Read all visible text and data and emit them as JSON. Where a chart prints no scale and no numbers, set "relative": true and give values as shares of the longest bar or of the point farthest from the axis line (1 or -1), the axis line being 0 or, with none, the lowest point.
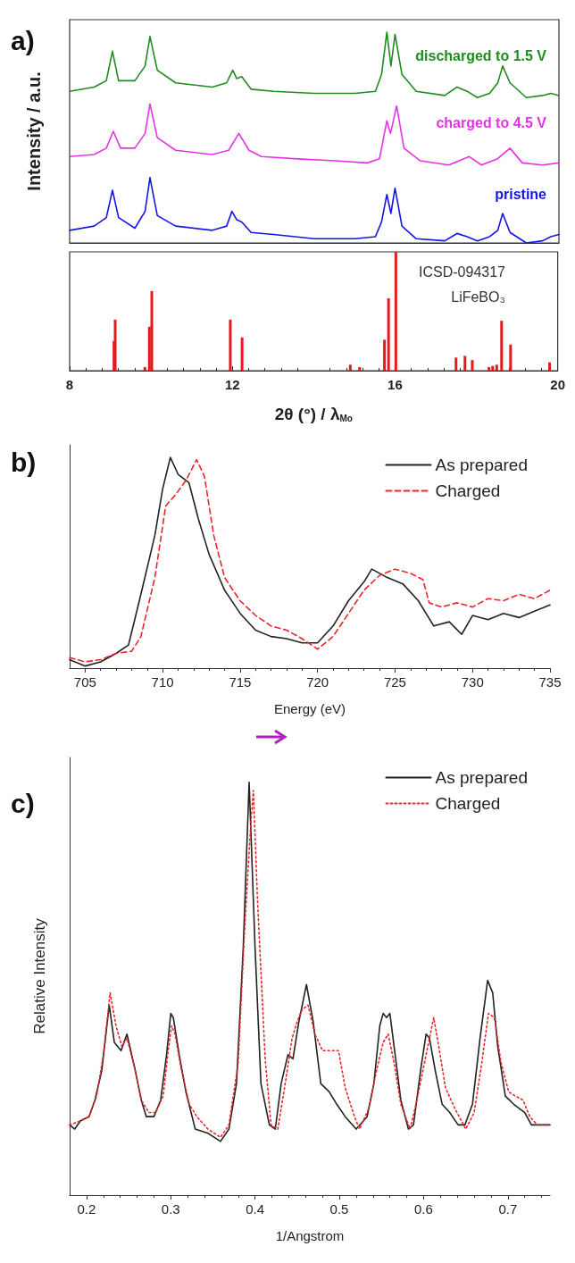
{
  "chart_data": [
    {
      "type": "line",
      "relative": true,
      "ylabel": "Intensity / a.u.",
      "xlim": [
        8,
        20
      ],
      "tick_labels": false,
      "legend": false,
      "marker": "none",
      "annotations": [
        "a)"
      ],
      "series": [
        {
          "name": "discharged to 1.5 V",
          "color": "#1e8c1e",
          "x": [
            8,
            8.6,
            8.9,
            9.05,
            9.2,
            9.6,
            9.85,
            9.97,
            10.15,
            10.6,
            11.5,
            11.85,
            12.0,
            12.1,
            12.22,
            12.45,
            13,
            14,
            15,
            15.5,
            15.65,
            15.78,
            15.88,
            15.98,
            16.15,
            16.5,
            17.2,
            17.5,
            17.75,
            18.0,
            18.3,
            18.5,
            18.62,
            18.8,
            19.2,
            19.6,
            19.8,
            20
          ],
          "values": [
            0.72,
            0.74,
            0.77,
            0.91,
            0.77,
            0.77,
            0.84,
            0.98,
            0.82,
            0.76,
            0.74,
            0.76,
            0.82,
            0.78,
            0.79,
            0.73,
            0.72,
            0.71,
            0.71,
            0.72,
            0.8,
            1.0,
            0.84,
            0.99,
            0.8,
            0.72,
            0.7,
            0.74,
            0.72,
            0.69,
            0.71,
            0.76,
            0.84,
            0.76,
            0.69,
            0.7,
            0.71,
            0.7
          ]
        },
        {
          "name": "charged to 4.5 V",
          "color": "#e632e6",
          "x": [
            8,
            8.6,
            8.9,
            9.07,
            9.25,
            9.6,
            9.85,
            9.97,
            10.15,
            10.6,
            11.5,
            11.9,
            12.15,
            12.4,
            12.7,
            13.5,
            14.5,
            15.3,
            15.6,
            15.78,
            15.87,
            16.02,
            16.2,
            16.6,
            17.3,
            17.8,
            18.1,
            18.5,
            18.8,
            19.1,
            19.6,
            20
          ],
          "values": [
            0.41,
            0.42,
            0.45,
            0.53,
            0.45,
            0.45,
            0.52,
            0.66,
            0.5,
            0.44,
            0.42,
            0.44,
            0.52,
            0.44,
            0.41,
            0.4,
            0.39,
            0.38,
            0.4,
            0.58,
            0.52,
            0.65,
            0.45,
            0.39,
            0.37,
            0.41,
            0.37,
            0.4,
            0.45,
            0.38,
            0.37,
            0.38
          ]
        },
        {
          "name": "pristine",
          "color": "#1414e6",
          "x": [
            8,
            8.6,
            8.9,
            9.05,
            9.2,
            9.6,
            9.85,
            9.97,
            10.15,
            10.6,
            11.5,
            11.85,
            11.98,
            12.1,
            12.22,
            12.45,
            13,
            14,
            15,
            15.5,
            15.65,
            15.78,
            15.88,
            15.98,
            16.15,
            16.5,
            17.2,
            17.5,
            17.75,
            18.0,
            18.3,
            18.5,
            18.62,
            18.8,
            19.2,
            19.6,
            19.8,
            20
          ],
          "values": [
            0.06,
            0.08,
            0.12,
            0.25,
            0.12,
            0.07,
            0.15,
            0.31,
            0.13,
            0.08,
            0.06,
            0.08,
            0.15,
            0.11,
            0.1,
            0.05,
            0.04,
            0.02,
            0.02,
            0.03,
            0.1,
            0.23,
            0.14,
            0.26,
            0.08,
            0.02,
            0.01,
            0.045,
            0.03,
            0.01,
            0.03,
            0.06,
            0.14,
            0.05,
            0.0,
            0.01,
            0.03,
            0.04
          ]
        }
      ]
    },
    {
      "type": "bar",
      "relative": true,
      "xlabel": "2θ (°) / λ$_{Mo}$",
      "xlim": [
        8,
        20
      ],
      "xticks": [
        8,
        12,
        16,
        20
      ],
      "tick_labels": "x",
      "color": "#e41a1c",
      "annotations": [
        "ICSD-094317",
        "LiFeBO₃"
      ],
      "x": [
        9.09,
        9.12,
        9.85,
        9.96,
        10.02,
        11.95,
        12.24,
        14.9,
        15.13,
        15.74,
        15.84,
        16.02,
        17.5,
        17.72,
        17.9,
        18.31,
        18.4,
        18.5,
        18.62,
        18.84,
        19.8
      ],
      "values": [
        0.25,
        0.43,
        0.03,
        0.37,
        0.67,
        0.43,
        0.28,
        0.05,
        0.03,
        0.26,
        0.61,
        1.0,
        0.11,
        0.125,
        0.09,
        0.03,
        0.04,
        0.05,
        0.42,
        0.22,
        0.07
      ]
    },
    {
      "type": "line",
      "relative": true,
      "xlabel": "Energy (eV)",
      "xlim": [
        704,
        735
      ],
      "xticks": [
        705,
        710,
        715,
        720,
        725,
        730,
        735
      ],
      "legend": "top right",
      "marker": "none",
      "annotations": [
        "b)"
      ],
      "series": [
        {
          "name": "As prepared",
          "color": "#222222",
          "line_style": "solid",
          "x": [
            704,
            705,
            706,
            707,
            707.8,
            708.5,
            709.5,
            710,
            710.5,
            711,
            711.7,
            712.3,
            713,
            714,
            715,
            716,
            717,
            718,
            719,
            720,
            721,
            722,
            723,
            723.5,
            724.5,
            725.5,
            726.5,
            727.5,
            728.5,
            729.3,
            730,
            731,
            732,
            733,
            734,
            735
          ],
          "values": [
            0.04,
            0.01,
            0.03,
            0.07,
            0.11,
            0.32,
            0.63,
            0.85,
            1.0,
            0.92,
            0.88,
            0.71,
            0.54,
            0.37,
            0.26,
            0.18,
            0.15,
            0.14,
            0.12,
            0.12,
            0.2,
            0.32,
            0.41,
            0.47,
            0.43,
            0.4,
            0.32,
            0.2,
            0.22,
            0.16,
            0.25,
            0.23,
            0.26,
            0.24,
            0.27,
            0.3
          ]
        },
        {
          "name": "Charged",
          "color": "#e8262b",
          "line_style": "dashed",
          "x": [
            704,
            705,
            706,
            707,
            708,
            708.6,
            709.5,
            710.2,
            710.8,
            711.5,
            712.2,
            712.7,
            713.3,
            714,
            715,
            716,
            717,
            718,
            719,
            720,
            721,
            722,
            723,
            724,
            725,
            726,
            726.8,
            727.2,
            728,
            729,
            730,
            731,
            732,
            733,
            734,
            735
          ],
          "values": [
            0.05,
            0.03,
            0.04,
            0.07,
            0.08,
            0.15,
            0.43,
            0.77,
            0.82,
            0.89,
            0.99,
            0.91,
            0.63,
            0.43,
            0.32,
            0.25,
            0.2,
            0.18,
            0.14,
            0.09,
            0.15,
            0.26,
            0.37,
            0.44,
            0.47,
            0.45,
            0.42,
            0.31,
            0.29,
            0.31,
            0.29,
            0.33,
            0.32,
            0.35,
            0.33,
            0.37
          ]
        }
      ]
    },
    {
      "type": "line",
      "relative": true,
      "xlabel": "1/Angstrom",
      "ylabel": "Relative Intensity",
      "xlim": [
        0.18,
        0.75
      ],
      "xticks": [
        0.2,
        0.3,
        0.4,
        0.5,
        0.6,
        0.7
      ],
      "legend": "top right",
      "marker": "none",
      "annotations": [
        "c)"
      ],
      "series": [
        {
          "name": "As prepared",
          "color": "#222222",
          "line_style": "solid",
          "x": [
            0.18,
            0.186,
            0.193,
            0.203,
            0.21,
            0.218,
            0.227,
            0.233,
            0.241,
            0.248,
            0.257,
            0.265,
            0.271,
            0.28,
            0.288,
            0.295,
            0.3,
            0.303,
            0.31,
            0.318,
            0.329,
            0.344,
            0.359,
            0.369,
            0.378,
            0.386,
            0.393,
            0.4,
            0.407,
            0.417,
            0.424,
            0.431,
            0.439,
            0.445,
            0.452,
            0.461,
            0.469,
            0.478,
            0.488,
            0.497,
            0.507,
            0.52,
            0.533,
            0.541,
            0.548,
            0.552,
            0.556,
            0.56,
            0.565,
            0.573,
            0.582,
            0.588,
            0.597,
            0.603,
            0.607,
            0.614,
            0.622,
            0.631,
            0.641,
            0.649,
            0.658,
            0.667,
            0.676,
            0.682,
            0.688,
            0.697,
            0.707,
            0.72,
            0.728,
            0.735,
            0.75
          ],
          "values": [
            0.17,
            0.16,
            0.18,
            0.19,
            0.23,
            0.3,
            0.46,
            0.37,
            0.35,
            0.39,
            0.31,
            0.23,
            0.19,
            0.19,
            0.23,
            0.34,
            0.44,
            0.43,
            0.34,
            0.25,
            0.16,
            0.15,
            0.13,
            0.16,
            0.27,
            0.6,
            1.0,
            0.6,
            0.27,
            0.17,
            0.16,
            0.27,
            0.34,
            0.33,
            0.42,
            0.51,
            0.42,
            0.27,
            0.25,
            0.22,
            0.19,
            0.16,
            0.19,
            0.27,
            0.41,
            0.44,
            0.43,
            0.44,
            0.36,
            0.23,
            0.16,
            0.17,
            0.31,
            0.39,
            0.38,
            0.3,
            0.22,
            0.2,
            0.17,
            0.17,
            0.22,
            0.38,
            0.52,
            0.49,
            0.36,
            0.24,
            0.22,
            0.2,
            0.17,
            0.17,
            0.17
          ]
        },
        {
          "name": "Charged",
          "color": "#e8262b",
          "line_style": "dotted",
          "x": [
            0.18,
            0.193,
            0.203,
            0.212,
            0.22,
            0.228,
            0.235,
            0.242,
            0.248,
            0.257,
            0.265,
            0.274,
            0.282,
            0.291,
            0.297,
            0.301,
            0.305,
            0.312,
            0.322,
            0.331,
            0.344,
            0.359,
            0.369,
            0.38,
            0.388,
            0.395,
            0.398,
            0.403,
            0.412,
            0.419,
            0.427,
            0.435,
            0.444,
            0.45,
            0.456,
            0.463,
            0.471,
            0.48,
            0.488,
            0.499,
            0.507,
            0.518,
            0.524,
            0.535,
            0.544,
            0.552,
            0.558,
            0.565,
            0.573,
            0.584,
            0.592,
            0.603,
            0.612,
            0.618,
            0.626,
            0.637,
            0.65,
            0.66,
            0.669,
            0.677,
            0.684,
            0.692,
            0.701,
            0.709,
            0.718,
            0.726,
            0.735,
            0.75
          ],
          "values": [
            0.17,
            0.18,
            0.19,
            0.24,
            0.34,
            0.49,
            0.41,
            0.36,
            0.38,
            0.31,
            0.23,
            0.2,
            0.2,
            0.24,
            0.35,
            0.41,
            0.39,
            0.31,
            0.22,
            0.19,
            0.16,
            0.14,
            0.17,
            0.32,
            0.66,
            0.9,
            0.98,
            0.71,
            0.33,
            0.17,
            0.16,
            0.26,
            0.38,
            0.42,
            0.45,
            0.46,
            0.39,
            0.35,
            0.35,
            0.35,
            0.26,
            0.19,
            0.16,
            0.21,
            0.3,
            0.37,
            0.39,
            0.32,
            0.22,
            0.16,
            0.23,
            0.34,
            0.43,
            0.36,
            0.26,
            0.21,
            0.16,
            0.2,
            0.32,
            0.44,
            0.43,
            0.32,
            0.25,
            0.24,
            0.23,
            0.19,
            0.17,
            0.17
          ]
        }
      ]
    }
  ]
}
